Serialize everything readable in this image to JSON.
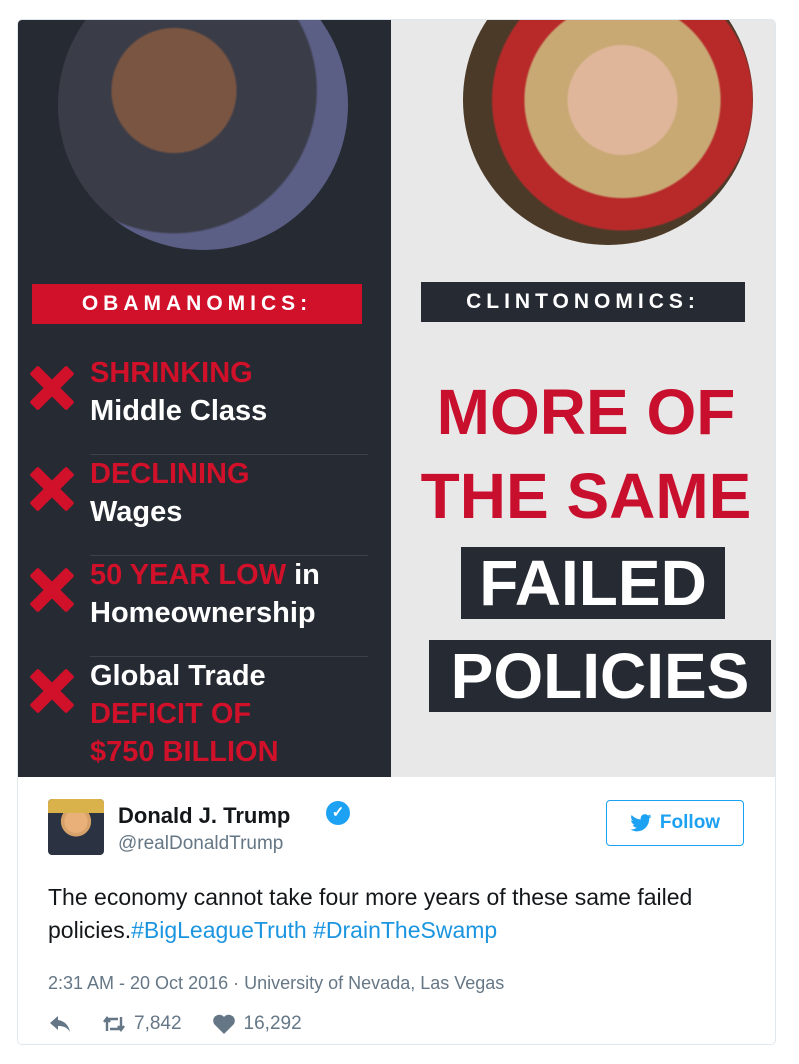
{
  "image": {
    "left_label": "OBAMANOMICS:",
    "right_label": "CLINTONOMICS:",
    "items": [
      {
        "red": "SHRINKING",
        "white": "Middle Class"
      },
      {
        "red": "DECLINING",
        "white": "Wages"
      },
      {
        "red": "50 YEAR LOW",
        "white_inline": " in",
        "white": "Homeownership"
      },
      {
        "white": "Global Trade",
        "red": "DEFICIT OF",
        "red2": "$750 BILLION"
      }
    ],
    "right_line1": "MORE OF",
    "right_line2": "THE SAME",
    "right_box1": "FAILED",
    "right_box2": "POLICIES"
  },
  "tweet": {
    "name": "Donald J. Trump",
    "handle": "@realDonaldTrump",
    "follow_label": "Follow",
    "text": "The economy cannot take four more years of these same failed policies.",
    "hashtags": [
      "#BigLeagueTruth",
      "#DrainTheSwamp"
    ],
    "time": "2:31 AM - 20 Oct 2016",
    "separator": "·",
    "location": "University of Nevada, Las Vegas",
    "retweets": "7,842",
    "likes": "16,292"
  },
  "colors": {
    "brand_blue": "#1da1f2",
    "accent_red": "#d1102a",
    "dark_panel": "#262a33"
  },
  "icons": [
    "verified-icon",
    "twitter-bird-icon",
    "reply-icon",
    "retweet-icon",
    "heart-icon"
  ]
}
